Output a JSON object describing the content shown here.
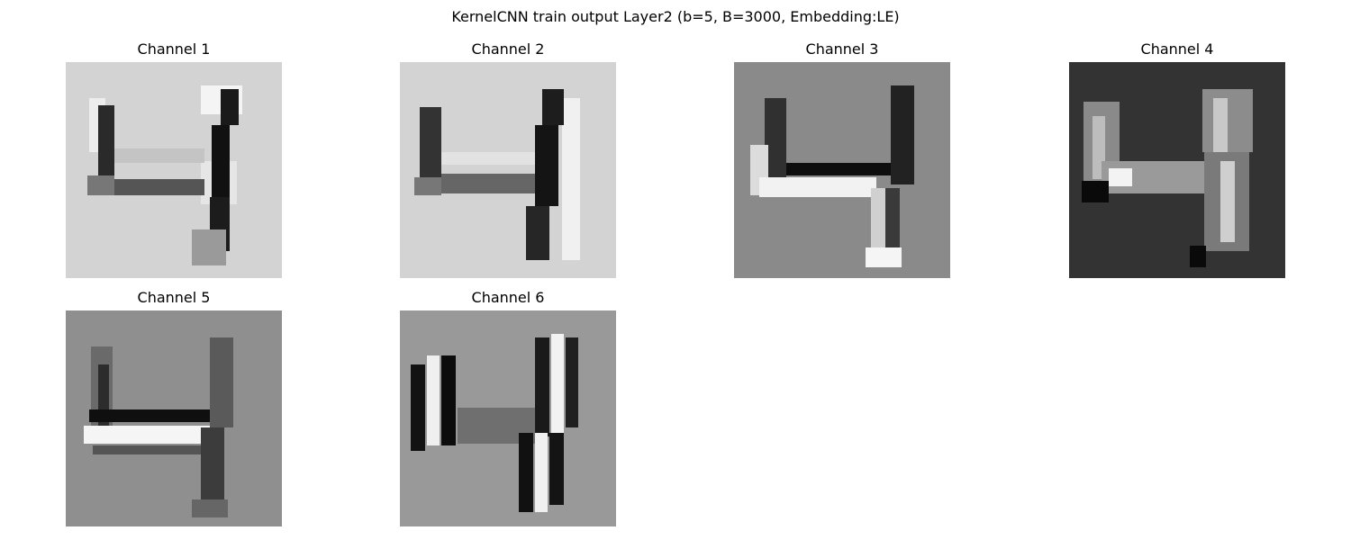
{
  "figure": {
    "title": "KernelCNN train output Layer2 (b=5, B=3000, Embedding:LE)"
  },
  "channels": [
    {
      "title": "Channel 1",
      "background": "#d3d3d3",
      "style": "halo-light"
    },
    {
      "title": "Channel 2",
      "background": "#d3d3d3",
      "style": "halo-light"
    },
    {
      "title": "Channel 3",
      "background": "#8a8a8a",
      "style": "edge-mixed"
    },
    {
      "title": "Channel 4",
      "background": "#333333",
      "style": "bright-on-dark"
    },
    {
      "title": "Channel 5",
      "background": "#8f8f8f",
      "style": "edge-mixed"
    },
    {
      "title": "Channel 6",
      "background": "#999999",
      "style": "ridge"
    }
  ]
}
